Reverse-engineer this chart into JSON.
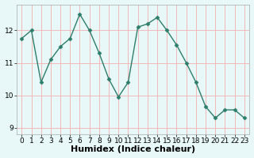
{
  "x": [
    0,
    1,
    2,
    3,
    4,
    5,
    6,
    7,
    8,
    9,
    10,
    11,
    12,
    13,
    14,
    15,
    16,
    17,
    18,
    19,
    20,
    21,
    22,
    23
  ],
  "y": [
    11.75,
    12.0,
    10.4,
    11.1,
    11.5,
    11.75,
    12.5,
    12.0,
    11.3,
    10.5,
    9.95,
    10.4,
    12.1,
    12.2,
    12.4,
    12.0,
    11.55,
    11.0,
    10.4,
    9.65,
    9.3,
    9.55,
    9.55,
    9.3
  ],
  "line_color": "#2d7d6b",
  "marker": "D",
  "marker_size": 2.5,
  "bg_color": "#e8f8f8",
  "grid_major_color": "#f4b8b8",
  "grid_minor_color": "#fad8d8",
  "xlabel": "Humidex (Indice chaleur)",
  "xlim": [
    -0.5,
    23.5
  ],
  "ylim": [
    8.8,
    12.8
  ],
  "yticks": [
    9,
    10,
    11,
    12
  ],
  "xticks": [
    0,
    1,
    2,
    3,
    4,
    5,
    6,
    7,
    8,
    9,
    10,
    11,
    12,
    13,
    14,
    15,
    16,
    17,
    18,
    19,
    20,
    21,
    22,
    23
  ],
  "tick_fontsize": 6.5,
  "xlabel_fontsize": 8
}
